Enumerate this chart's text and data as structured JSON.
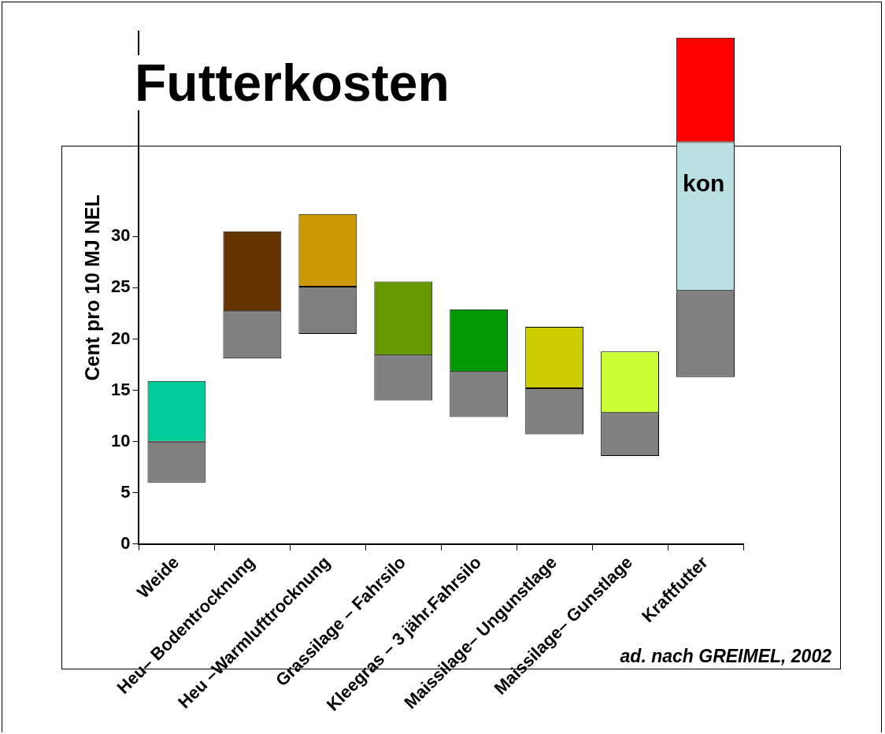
{
  "chart_data": {
    "type": "bar",
    "title": "Futterkosten",
    "ylabel": "Cent pro 10 MJ NEL",
    "categories": [
      "Weide",
      "Heu– Bodentrocknung",
      "Heu –Warmlufttrocknung",
      "Grassilage – Fahrsilo",
      "Kleegras – 3 jähr.Fahrsilo",
      "Maissilage– Ungunstlage",
      "Maissilage– Gunstlage",
      "Kraftfutter"
    ],
    "series": [
      {
        "colors": [
          "#808080",
          "#808080",
          "#808080",
          "#808080",
          "#808080",
          "#808080",
          "#808080",
          "#808080"
        ],
        "base": [
          6.0,
          18.1,
          20.5,
          14.0,
          12.4,
          10.7,
          8.6,
          16.3
        ],
        "values": [
          4.0,
          4.6,
          4.6,
          4.4,
          4.4,
          4.5,
          4.2,
          8.4
        ]
      },
      {
        "colors": [
          "#00cc99",
          "#663300",
          "#cc9900",
          "#669900",
          "#009900",
          "#cccc00",
          "#ccff33",
          "#bbe0e3"
        ],
        "base": [
          10.0,
          22.7,
          25.1,
          18.4,
          16.8,
          15.2,
          12.8,
          24.7
        ],
        "values": [
          5.9,
          7.8,
          7.1,
          7.2,
          6.1,
          6.0,
          6.0,
          14.5
        ]
      },
      {
        "colors": [
          "#ff0000",
          "#ff0000",
          "#ff0000",
          "#ff0000",
          "#ff0000",
          "#ff0000",
          "#ff0000",
          "#ff0000"
        ],
        "base": [
          null,
          null,
          null,
          null,
          null,
          null,
          null,
          39.2
        ],
        "values": [
          null,
          null,
          null,
          null,
          null,
          null,
          null,
          10.2
        ]
      }
    ],
    "ylim": [
      0,
      50
    ],
    "yticks": [
      0,
      5,
      10,
      15,
      20,
      25,
      30
    ],
    "grid": false,
    "legend": false,
    "annotations": [
      "kon",
      "ad. nach GREIMEL, 2002"
    ]
  }
}
